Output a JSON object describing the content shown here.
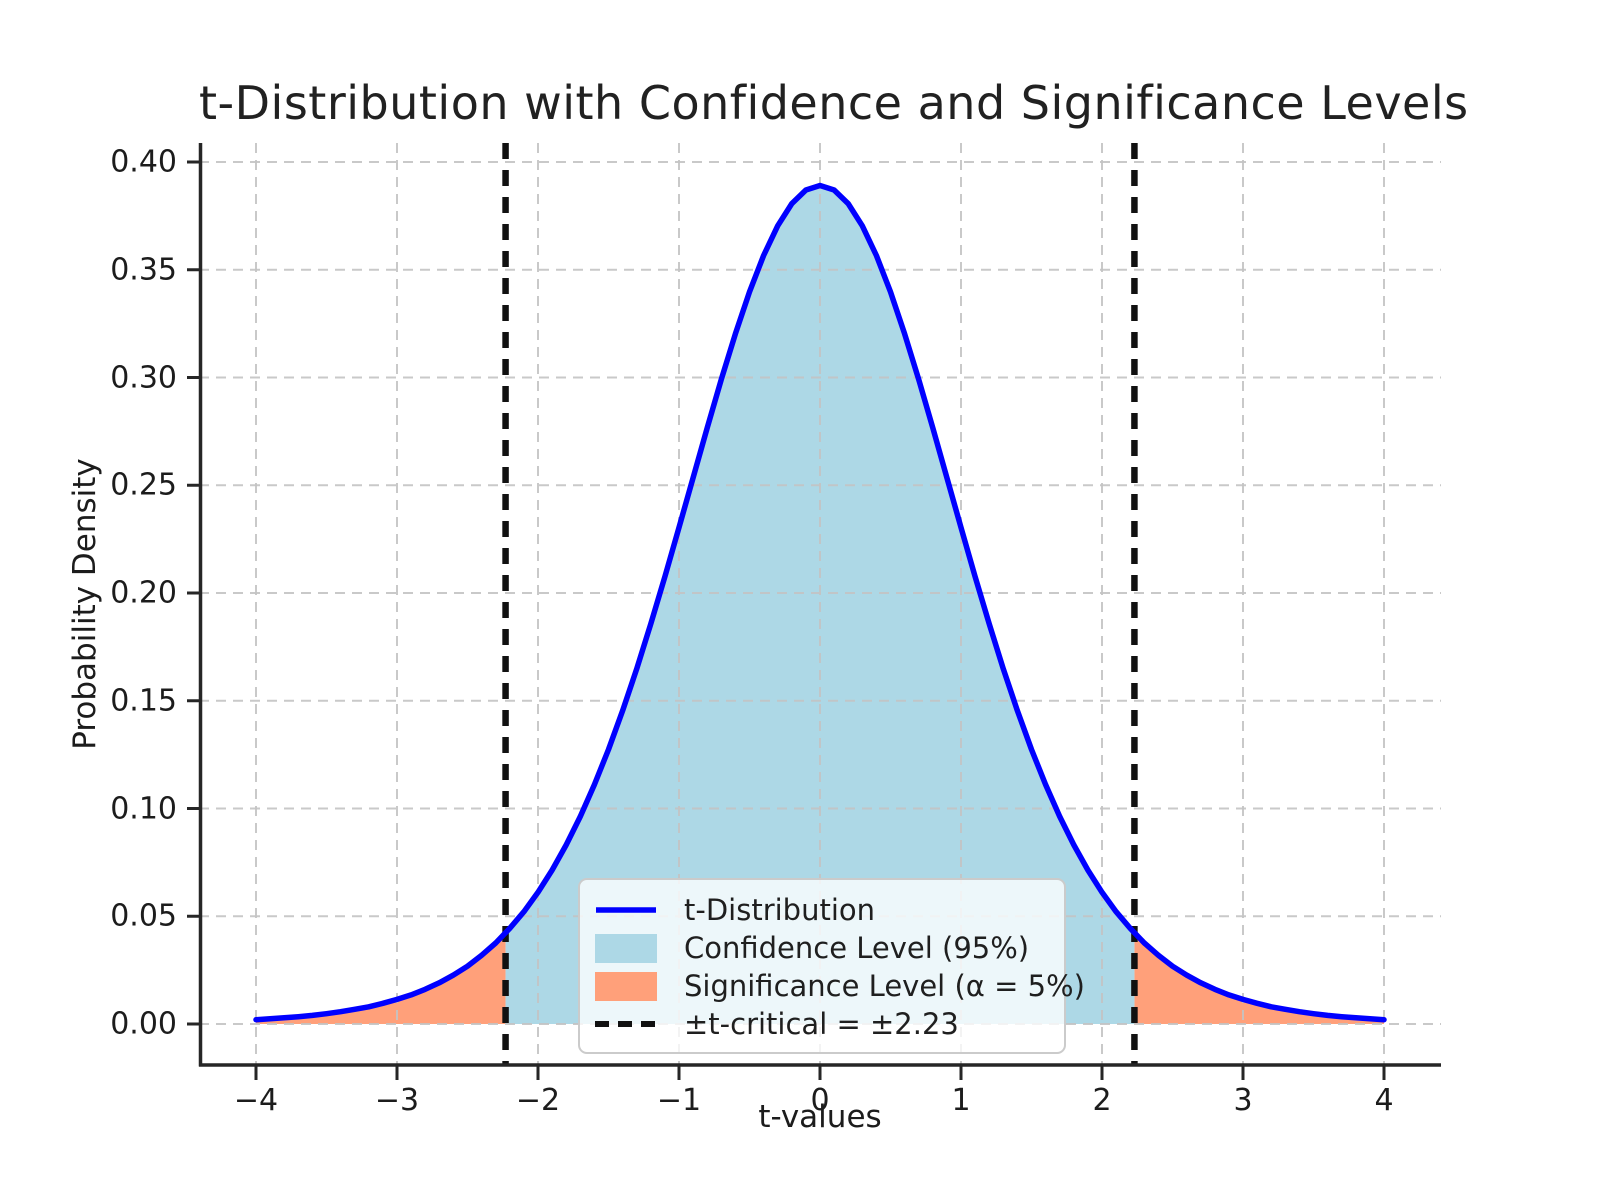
{
  "title": "t-Distribution with Confidence and Significance Levels",
  "colors": {
    "curve": "#0000ff",
    "confidence_fill": "#add8e6",
    "significance_fill": "#ffa07a",
    "critical_line": "#111111",
    "grid": "#c4c4c4",
    "spine": "#262626",
    "text": "#1c1c1c"
  },
  "chart_data": {
    "type": "line",
    "title": "t-Distribution with Confidence and Significance Levels",
    "xlabel": "t-values",
    "ylabel": "Probability Density",
    "xlim": [
      -4.4,
      4.4
    ],
    "ylim": [
      -0.019,
      0.409
    ],
    "grid": true,
    "grid_style": "dashed",
    "legend_position": "lower center (inside axes)",
    "x_tick_values": [
      -4,
      -3,
      -2,
      -1,
      0,
      1,
      2,
      3,
      4
    ],
    "x_tick_labels": [
      "−4",
      "−3",
      "−2",
      "−1",
      "0",
      "1",
      "2",
      "3",
      "4"
    ],
    "y_tick_values": [
      0.0,
      0.05,
      0.1,
      0.15,
      0.2,
      0.25,
      0.3,
      0.35,
      0.4
    ],
    "y_tick_labels": [
      "0.00",
      "0.05",
      "0.10",
      "0.15",
      "0.20",
      "0.25",
      "0.30",
      "0.35",
      "0.40"
    ],
    "t_critical": 2.23,
    "confidence_level_pct": 95,
    "significance_alpha_pct": 5,
    "peak_density": 0.3891,
    "series": [
      {
        "name": "t-Distribution",
        "x_start": -4.0,
        "x_step": 0.1,
        "y": [
          0.002,
          0.0024,
          0.0029,
          0.0034,
          0.004,
          0.0048,
          0.0057,
          0.0068,
          0.008,
          0.0096,
          0.0114,
          0.0135,
          0.0161,
          0.0191,
          0.0227,
          0.0268,
          0.0319,
          0.0376,
          0.0444,
          0.0521,
          0.0611,
          0.0714,
          0.0831,
          0.0963,
          0.1111,
          0.1274,
          0.1454,
          0.1648,
          0.1857,
          0.2076,
          0.2304,
          0.2535,
          0.2766,
          0.2991,
          0.3203,
          0.3397,
          0.3566,
          0.3704,
          0.3807,
          0.387,
          0.3891,
          0.387,
          0.3807,
          0.3704,
          0.3566,
          0.3397,
          0.3203,
          0.2991,
          0.2766,
          0.2535,
          0.2304,
          0.2076,
          0.1857,
          0.1648,
          0.1454,
          0.1274,
          0.1111,
          0.0963,
          0.0831,
          0.0714,
          0.0611,
          0.0521,
          0.0444,
          0.0376,
          0.0319,
          0.0268,
          0.0227,
          0.0191,
          0.0161,
          0.0135,
          0.0114,
          0.0096,
          0.008,
          0.0068,
          0.0057,
          0.0048,
          0.004,
          0.0034,
          0.0029,
          0.0024,
          0.002
        ]
      }
    ],
    "regions": [
      {
        "name": "Confidence Level (95%)",
        "x_range": [
          -2.23,
          2.23
        ],
        "color": "#add8e6"
      },
      {
        "name": "Significance Level (α = 5%)",
        "x_range": "tails beyond ±2.23",
        "color": "#ffa07a"
      }
    ],
    "vlines": [
      {
        "x": -2.23,
        "style": "dashed",
        "color": "#111111"
      },
      {
        "x": 2.23,
        "style": "dashed",
        "color": "#111111"
      }
    ],
    "legend": [
      {
        "label": "t-Distribution",
        "swatch": "line",
        "color": "#0000ff"
      },
      {
        "label": "Confidence Level (95%)",
        "swatch": "patch",
        "color": "#add8e6"
      },
      {
        "label": "Significance Level (α = 5%)",
        "swatch": "patch",
        "color": "#ffa07a"
      },
      {
        "label": "±t-critical = ±2.23",
        "swatch": "dashed-line",
        "color": "#111111"
      }
    ]
  }
}
